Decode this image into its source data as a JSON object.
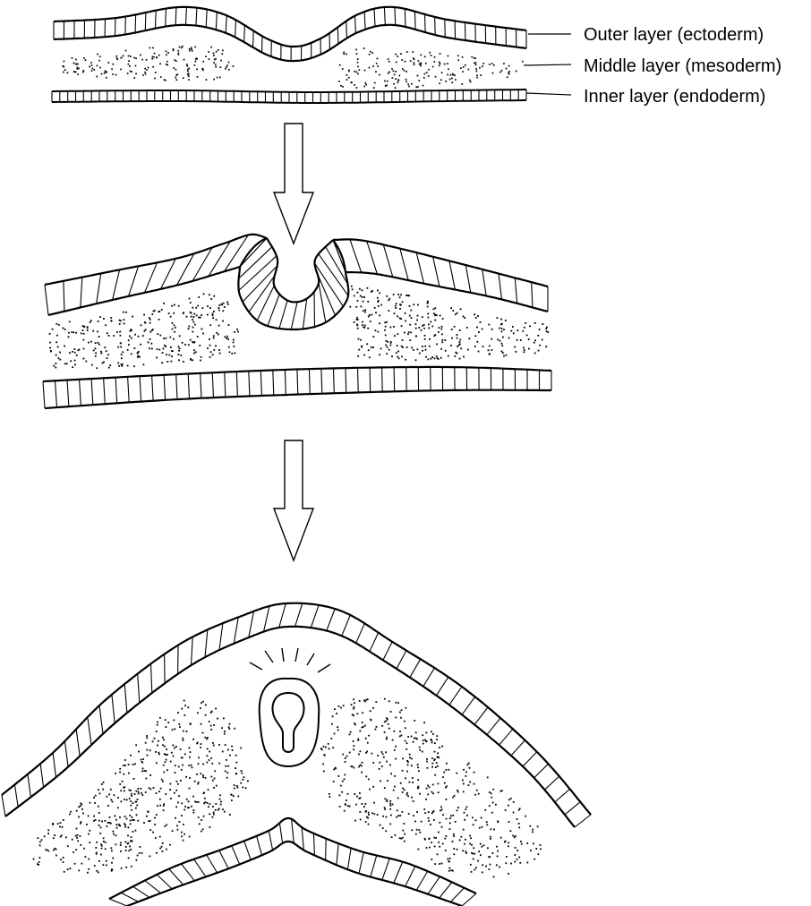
{
  "labels": {
    "outer": "Outer layer (ectoderm)",
    "middle": "Middle layer (mesoderm)",
    "inner": "Inner layer (endoderm)"
  },
  "colors": {
    "ink": "#000000",
    "arrow_fill": "#ffffff",
    "background": "#ffffff"
  }
}
